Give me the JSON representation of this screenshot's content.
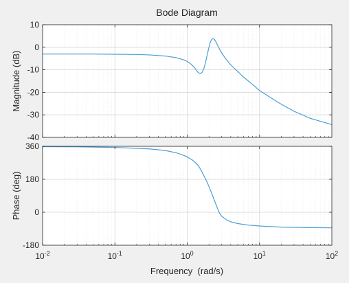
{
  "chart_data": {
    "type": "line",
    "title": "Bode Diagram",
    "xlabel": "Frequency  (rad/s)",
    "x_scale": "log",
    "xlim": [
      0.01,
      100
    ],
    "x_ticks": [
      0.01,
      0.1,
      1,
      10,
      100
    ],
    "x_tick_labels": [
      {
        "base": "10",
        "exp": "-2"
      },
      {
        "base": "10",
        "exp": "-1"
      },
      {
        "base": "10",
        "exp": "0"
      },
      {
        "base": "10",
        "exp": "1"
      },
      {
        "base": "10",
        "exp": "2"
      }
    ],
    "grid": true,
    "line_color": "#4a9fd5",
    "panels": [
      {
        "ylabel": "Magnitude (dB)",
        "ylim": [
          -40,
          10
        ],
        "y_ticks": [
          10,
          0,
          -10,
          -20,
          -30,
          -40
        ],
        "y_tick_labels": [
          "10",
          "0",
          "-10",
          "-20",
          "-30",
          "-40"
        ],
        "series": [
          {
            "x": [
              0.01,
              0.02,
              0.05,
              0.1,
              0.2,
              0.3,
              0.5,
              0.7,
              0.9,
              1.0,
              1.1,
              1.2,
              1.3,
              1.4,
              1.5,
              1.6,
              1.7,
              1.8,
              1.9,
              2.0,
              2.1,
              2.2,
              2.3,
              2.4,
              2.5,
              2.6,
              2.8,
              3.0,
              3.3,
              3.7,
              4.0,
              5.0,
              6.0,
              8.0,
              10,
              15,
              20,
              30,
              50,
              70,
              100
            ],
            "y": [
              -3.0,
              -3.0,
              -3.0,
              -3.1,
              -3.2,
              -3.4,
              -3.9,
              -4.6,
              -5.6,
              -6.3,
              -7.2,
              -8.3,
              -9.6,
              -11.0,
              -11.7,
              -11.2,
              -9.5,
              -6.5,
              -3.0,
              0.0,
              2.5,
              3.6,
              3.8,
              3.3,
              2.3,
              1.2,
              -0.8,
              -2.5,
              -4.5,
              -6.5,
              -7.8,
              -10.8,
              -13.2,
              -16.5,
              -19.2,
              -22.8,
              -25.3,
              -28.4,
              -31.5,
              -32.9,
              -34.3
            ]
          }
        ]
      },
      {
        "ylabel": "Phase (deg)",
        "ylim": [
          -180,
          360
        ],
        "y_ticks": [
          360,
          180,
          0,
          -180
        ],
        "y_tick_labels": [
          "360",
          "180",
          "0",
          "-180"
        ],
        "series": [
          {
            "x": [
              0.01,
              0.03,
              0.1,
              0.3,
              0.5,
              0.7,
              0.9,
              1.0,
              1.2,
              1.4,
              1.5,
              1.6,
              1.7,
              1.8,
              1.9,
              2.0,
              2.2,
              2.4,
              2.6,
              2.8,
              3.0,
              3.5,
              4.0,
              5.0,
              7.0,
              10,
              20,
              50,
              100
            ],
            "y": [
              358,
              357,
              354,
              346,
              337,
              325,
              310,
              302,
              283,
              258,
              240,
              220,
              200,
              180,
              162,
              140,
              100,
              60,
              25,
              -5,
              -22,
              -42,
              -52,
              -62,
              -70,
              -75,
              -81,
              -84,
              -85
            ]
          }
        ]
      }
    ]
  }
}
